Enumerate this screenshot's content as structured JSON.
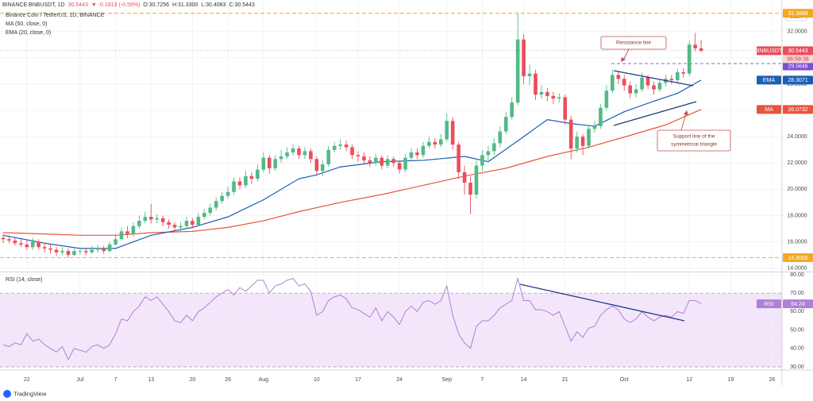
{
  "chart_data": {
    "type": "candlestick",
    "header": {
      "symbol": "BINANCE:BNBUSDT, 1D",
      "last": "30.5443",
      "change": "▼ -0.1813 (-0.59%)",
      "ohlc": [
        "O:30.7256",
        "H:31.3300",
        "L:30.4083",
        "C:30.5443"
      ]
    },
    "title": "Binance Coin / TetherUS, 1D, BINANCE",
    "currency": "USDT",
    "up_color": "#53b987",
    "down_color": "#eb4d5c",
    "grid": true,
    "x": [
      "06-18",
      "06-19",
      "06-20",
      "06-21",
      "06-22",
      "06-23",
      "06-24",
      "06-25",
      "06-26",
      "06-27",
      "06-28",
      "06-29",
      "06-30",
      "07-01",
      "07-02",
      "07-03",
      "07-04",
      "07-05",
      "07-06",
      "07-07",
      "07-08",
      "07-09",
      "07-10",
      "07-11",
      "07-12",
      "07-13",
      "07-14",
      "07-15",
      "07-16",
      "07-17",
      "07-18",
      "07-19",
      "07-20",
      "07-21",
      "07-22",
      "07-23",
      "07-24",
      "07-25",
      "07-26",
      "07-27",
      "07-28",
      "07-29",
      "07-30",
      "07-31",
      "08-01",
      "08-02",
      "08-03",
      "08-04",
      "08-05",
      "08-06",
      "08-07",
      "08-08",
      "08-09",
      "08-10",
      "08-11",
      "08-12",
      "08-13",
      "08-14",
      "08-15",
      "08-16",
      "08-17",
      "08-18",
      "08-19",
      "08-20",
      "08-21",
      "08-22",
      "08-23",
      "08-24",
      "08-25",
      "08-26",
      "08-27",
      "08-28",
      "08-29",
      "08-30",
      "08-31",
      "09-01",
      "09-02",
      "09-03",
      "09-04",
      "09-05",
      "09-06",
      "09-07",
      "09-08",
      "09-09",
      "09-10",
      "09-11",
      "09-12",
      "09-13",
      "09-14",
      "09-15",
      "09-16",
      "09-17",
      "09-18",
      "09-19",
      "09-20",
      "09-21",
      "09-22",
      "09-23",
      "09-24",
      "09-25",
      "09-26",
      "09-27",
      "09-28",
      "09-29",
      "09-30",
      "10-01",
      "10-02",
      "10-03",
      "10-04",
      "10-05",
      "10-06",
      "10-07",
      "10-08",
      "10-09",
      "10-10",
      "10-11",
      "10-12",
      "10-13",
      "10-14"
    ],
    "open": [
      16.3,
      16.2,
      16.1,
      15.9,
      15.8,
      15.6,
      16.0,
      15.6,
      15.5,
      15.4,
      15.2,
      15.3,
      15.0,
      15.3,
      15.3,
      15.2,
      15.4,
      15.5,
      15.3,
      15.8,
      16.2,
      16.8,
      16.6,
      17.2,
      17.6,
      17.9,
      17.7,
      17.8,
      17.5,
      17.3,
      17.1,
      17.2,
      17.6,
      17.3,
      17.9,
      18.2,
      18.6,
      19.1,
      19.5,
      19.8,
      20.6,
      20.3,
      21.0,
      20.8,
      21.5,
      22.4,
      21.6,
      22.3,
      22.5,
      22.8,
      23.1,
      22.6,
      22.9,
      22.3,
      21.4,
      21.9,
      23.0,
      23.3,
      23.4,
      23.2,
      22.6,
      22.5,
      22.2,
      22.0,
      22.4,
      21.8,
      22.3,
      22.0,
      21.5,
      22.4,
      22.8,
      22.6,
      23.3,
      23.6,
      23.4,
      23.8,
      25.2,
      23.4,
      21.3,
      20.5,
      19.6,
      21.8,
      22.6,
      22.9,
      23.5,
      24.4,
      25.5,
      26.6,
      31.4,
      28.6,
      28.8,
      27.2,
      27.4,
      27.1,
      26.9,
      27.0,
      25.3,
      23.1,
      24.0,
      23.3,
      24.6,
      24.8,
      26.2,
      27.5,
      28.7,
      28.4,
      27.9,
      27.3,
      27.6,
      28.5,
      27.9,
      27.6,
      28.1,
      28.4,
      28.3,
      28.9,
      28.8,
      31.0,
      30.7256
    ],
    "high": [
      16.6,
      16.5,
      16.4,
      16.2,
      16.1,
      16.3,
      16.2,
      15.9,
      15.8,
      15.6,
      15.6,
      15.5,
      15.5,
      15.6,
      15.5,
      15.7,
      15.8,
      15.7,
      16.0,
      16.6,
      17.1,
      17.2,
      17.5,
      18.0,
      18.3,
      18.9,
      18.1,
      18.0,
      17.7,
      17.5,
      17.5,
      17.9,
      17.8,
      18.2,
      18.5,
      18.9,
      19.4,
      19.8,
      20.2,
      20.9,
      20.9,
      21.4,
      21.3,
      21.9,
      22.8,
      22.6,
      22.6,
      23.0,
      23.2,
      23.4,
      23.3,
      23.2,
      23.1,
      22.5,
      22.2,
      23.3,
      23.6,
      23.8,
      23.7,
      23.4,
      22.9,
      22.8,
      22.5,
      22.7,
      22.6,
      22.6,
      22.5,
      22.2,
      22.7,
      23.1,
      23.1,
      23.6,
      24.0,
      23.9,
      24.2,
      25.8,
      25.5,
      23.6,
      21.8,
      21.0,
      22.2,
      23.0,
      23.3,
      23.9,
      24.8,
      25.9,
      27.0,
      33.3888,
      31.8,
      29.5,
      29.1,
      27.9,
      27.7,
      27.4,
      27.3,
      27.2,
      25.6,
      24.4,
      24.2,
      24.9,
      25.2,
      26.5,
      27.9,
      29.1,
      29.0,
      28.7,
      28.2,
      28.0,
      28.9,
      28.7,
      28.2,
      28.4,
      28.7,
      28.7,
      29.2,
      29.2,
      31.3,
      31.9,
      31.33
    ],
    "low": [
      15.9,
      15.9,
      15.7,
      15.6,
      15.4,
      15.4,
      15.4,
      15.2,
      15.1,
      14.9,
      15.0,
      14.8,
      14.9,
      15.0,
      15.0,
      15.1,
      15.2,
      15.1,
      15.2,
      15.7,
      16.1,
      16.3,
      16.4,
      17.0,
      17.4,
      17.4,
      17.4,
      17.2,
      17.0,
      16.8,
      16.8,
      17.0,
      17.1,
      17.2,
      17.7,
      18.0,
      18.4,
      18.9,
      19.3,
      19.6,
      20.0,
      20.1,
      20.4,
      20.6,
      21.3,
      21.2,
      21.4,
      22.0,
      22.3,
      22.6,
      22.3,
      22.3,
      22.0,
      21.0,
      21.0,
      21.7,
      22.8,
      23.0,
      22.9,
      22.3,
      22.1,
      21.9,
      21.7,
      21.8,
      21.5,
      21.6,
      21.7,
      21.2,
      21.3,
      22.2,
      22.3,
      22.4,
      23.1,
      23.1,
      23.2,
      23.6,
      23.0,
      20.8,
      19.6,
      18.1,
      19.3,
      21.4,
      22.2,
      22.6,
      23.2,
      24.2,
      25.3,
      26.4,
      28.0,
      27.9,
      26.8,
      26.9,
      26.7,
      26.5,
      26.6,
      24.9,
      22.3,
      22.8,
      22.6,
      23.1,
      24.3,
      24.6,
      26.0,
      27.3,
      28.0,
      27.5,
      26.9,
      27.0,
      27.4,
      27.6,
      27.2,
      27.4,
      27.8,
      28.0,
      28.1,
      28.5,
      28.6,
      30.5,
      30.4083
    ],
    "close": [
      16.2,
      16.1,
      15.9,
      15.8,
      15.6,
      16.0,
      15.6,
      15.5,
      15.4,
      15.2,
      15.3,
      15.0,
      15.3,
      15.3,
      15.2,
      15.4,
      15.5,
      15.3,
      15.8,
      16.2,
      16.8,
      16.6,
      17.2,
      17.6,
      17.9,
      17.7,
      17.8,
      17.5,
      17.3,
      17.1,
      17.2,
      17.6,
      17.3,
      17.9,
      18.2,
      18.6,
      19.1,
      19.5,
      19.8,
      20.6,
      20.3,
      21.0,
      20.8,
      21.5,
      22.4,
      21.6,
      22.3,
      22.5,
      22.8,
      23.1,
      22.6,
      22.9,
      22.3,
      21.4,
      21.9,
      23.0,
      23.3,
      23.4,
      23.2,
      22.6,
      22.5,
      22.2,
      22.0,
      22.4,
      21.8,
      22.3,
      22.0,
      21.5,
      22.4,
      22.8,
      22.6,
      23.3,
      23.6,
      23.4,
      23.8,
      25.2,
      23.4,
      21.3,
      20.5,
      19.6,
      21.8,
      22.6,
      22.9,
      23.5,
      24.4,
      25.5,
      26.6,
      31.4,
      28.6,
      28.8,
      27.2,
      27.4,
      27.1,
      26.9,
      27.0,
      25.3,
      23.1,
      24.0,
      23.3,
      24.6,
      24.8,
      26.2,
      27.5,
      28.7,
      28.4,
      27.9,
      27.3,
      27.6,
      28.5,
      27.9,
      27.6,
      28.1,
      28.4,
      28.3,
      28.9,
      28.8,
      31.0,
      30.7256,
      30.5443
    ],
    "ylim": [
      13.8,
      34.4
    ],
    "yticks": [
      {
        "value": 14,
        "label": "14.0000"
      },
      {
        "value": 16,
        "label": "16.0000"
      },
      {
        "value": 18,
        "label": "18.0000"
      },
      {
        "value": 20,
        "label": "20.0000"
      },
      {
        "value": 22,
        "label": "22.0000"
      },
      {
        "value": 24,
        "label": "24.0000"
      },
      {
        "value": 26,
        "label": "26.0000"
      },
      {
        "value": 28,
        "label": "28.0000"
      },
      {
        "value": 30,
        "label": "30.0000"
      },
      {
        "value": 32,
        "label": "32.0000"
      }
    ],
    "xticks": [
      {
        "value": "06-22",
        "label": "22"
      },
      {
        "value": "07-01",
        "label": "Jul"
      },
      {
        "value": "07-07",
        "label": "7"
      },
      {
        "value": "07-13",
        "label": "13"
      },
      {
        "value": "07-20",
        "label": "20"
      },
      {
        "value": "07-26",
        "label": "26"
      },
      {
        "value": "08-01",
        "label": "Aug"
      },
      {
        "value": "08-10",
        "label": "10"
      },
      {
        "value": "08-17",
        "label": "17"
      },
      {
        "value": "08-24",
        "label": "24"
      },
      {
        "value": "09-01",
        "label": "Sep"
      },
      {
        "value": "09-07",
        "label": "7"
      },
      {
        "value": "09-14",
        "label": "14"
      },
      {
        "value": "09-21",
        "label": "21"
      },
      {
        "value": "10-01",
        "label": "Oct"
      },
      {
        "value": "10-12",
        "label": "12"
      },
      {
        "value": "10-19",
        "label": "19"
      },
      {
        "value": "10-26",
        "label": "26"
      }
    ],
    "last_price": {
      "symbol": "BNBUSDT",
      "value": 30.5443,
      "countdown": "06:59:38"
    },
    "levels": [
      {
        "value": 33.3888,
        "label": "33.3888"
      },
      {
        "value": 14.8,
        "label": "14.8000"
      }
    ],
    "level_color": "#f5a623",
    "marker_line": {
      "value": 29.5646,
      "color": "#7b4fcf"
    },
    "overlays": [
      {
        "name": "MA (50, close, 0)",
        "tag": "MA",
        "color": "#e8553d",
        "x": [
          "06-18",
          "06-25",
          "07-01",
          "07-07",
          "07-13",
          "07-20",
          "07-26",
          "08-01",
          "08-07",
          "08-14",
          "08-21",
          "08-28",
          "09-04",
          "09-11",
          "09-18",
          "09-25",
          "10-02",
          "10-08",
          "10-14"
        ],
        "values": [
          16.7,
          16.6,
          16.5,
          16.5,
          16.7,
          16.8,
          17.1,
          17.6,
          18.3,
          19.0,
          19.6,
          20.3,
          21.0,
          21.6,
          22.5,
          23.2,
          24.1,
          24.9,
          26.0732
        ]
      },
      {
        "name": "EMA (20, close, 0)",
        "tag": "EMA",
        "color": "#1e5fb4",
        "x": [
          "06-18",
          "06-25",
          "07-01",
          "07-07",
          "07-13",
          "07-20",
          "07-26",
          "08-01",
          "08-07",
          "08-10",
          "08-14",
          "08-21",
          "08-28",
          "09-04",
          "09-08",
          "09-14",
          "09-18",
          "09-22",
          "09-26",
          "10-01",
          "10-06",
          "10-10",
          "10-14"
        ],
        "values": [
          16.5,
          15.9,
          15.5,
          15.5,
          16.5,
          17.1,
          17.9,
          19.2,
          20.8,
          21.1,
          21.7,
          22.1,
          22.2,
          22.5,
          22.1,
          24.0,
          25.3,
          25.0,
          24.8,
          25.9,
          26.7,
          27.3,
          28.3071
        ]
      }
    ],
    "annotations": [
      {
        "lines": [
          "Resistance line"
        ]
      },
      {
        "lines": [
          "Support line of the",
          "symmetrical triangle"
        ]
      }
    ],
    "rsi": {
      "title": "RSI (14, close)",
      "tag": "RSI",
      "color": "#b07fd6",
      "band": [
        30,
        70
      ],
      "band_color": "#f3e6fb",
      "ylim": [
        28.7,
        81.3
      ],
      "yticks": [
        {
          "value": 30,
          "label": "30.00"
        },
        {
          "value": 40,
          "label": "40.00"
        },
        {
          "value": 50,
          "label": "50.00"
        },
        {
          "value": 60,
          "label": "60.00"
        },
        {
          "value": 70,
          "label": "70.00"
        },
        {
          "value": 80,
          "label": "80.00"
        }
      ],
      "values": [
        42,
        41,
        43,
        42,
        48,
        44,
        45,
        42,
        40,
        38,
        41,
        34,
        40,
        39,
        38,
        41,
        42,
        40,
        42,
        48,
        56,
        55,
        60,
        63,
        68,
        66,
        68,
        64,
        60,
        55,
        54,
        58,
        55,
        60,
        62,
        65,
        68,
        70,
        72,
        69,
        73,
        71,
        74,
        77,
        77,
        70,
        74,
        75,
        77,
        78,
        74,
        75,
        71,
        58,
        60,
        66,
        68,
        69,
        67,
        62,
        61,
        59,
        57,
        62,
        55,
        60,
        57,
        53,
        60,
        63,
        60,
        65,
        66,
        64,
        66,
        74,
        58,
        48,
        43,
        40,
        52,
        55,
        55,
        58,
        62,
        64,
        66,
        78,
        66,
        66,
        61,
        61,
        60,
        58,
        60,
        52,
        44,
        49,
        46,
        51,
        52,
        58,
        61,
        63,
        61,
        56,
        54,
        56,
        60,
        57,
        55,
        57,
        58,
        57,
        60,
        59,
        66,
        66,
        64.24
      ]
    },
    "footer": "TradingView"
  }
}
